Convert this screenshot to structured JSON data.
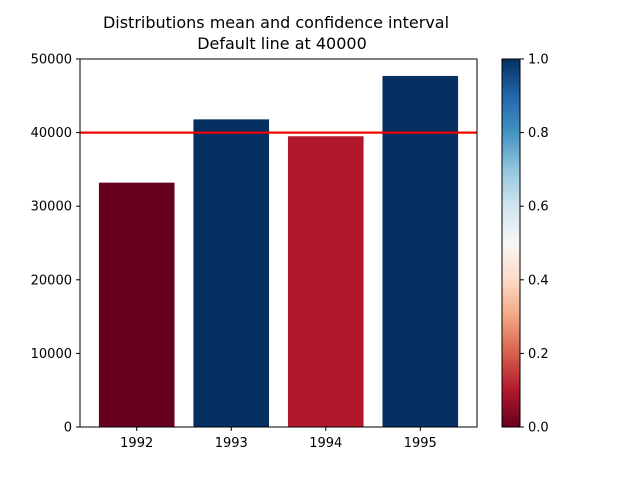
{
  "chart_data": {
    "type": "bar",
    "title": "Distributions mean and confidence interval",
    "subtitle": "Default line at 40000",
    "categories": [
      "1992",
      "1993",
      "1994",
      "1995"
    ],
    "values": [
      33200,
      41800,
      39500,
      47700
    ],
    "bar_colors": [
      "#67001f",
      "#053061",
      "#b2182b",
      "#053061"
    ],
    "ylim": [
      0,
      50000
    ],
    "yticks": [
      "0",
      "10000",
      "20000",
      "30000",
      "40000",
      "50000"
    ],
    "reference_line": {
      "value": 40000,
      "color": "#ee0000"
    },
    "grid": false,
    "colorbar": {
      "range": [
        0.0,
        1.0
      ],
      "ticks": [
        "0.0",
        "0.2",
        "0.4",
        "0.6",
        "0.8",
        "1.0"
      ],
      "colormap": [
        "#67001f",
        "#b2182b",
        "#d6604d",
        "#f4a582",
        "#fddbc7",
        "#f7f7f7",
        "#d1e5f0",
        "#92c5de",
        "#4393c3",
        "#2166ac",
        "#053061"
      ]
    }
  }
}
